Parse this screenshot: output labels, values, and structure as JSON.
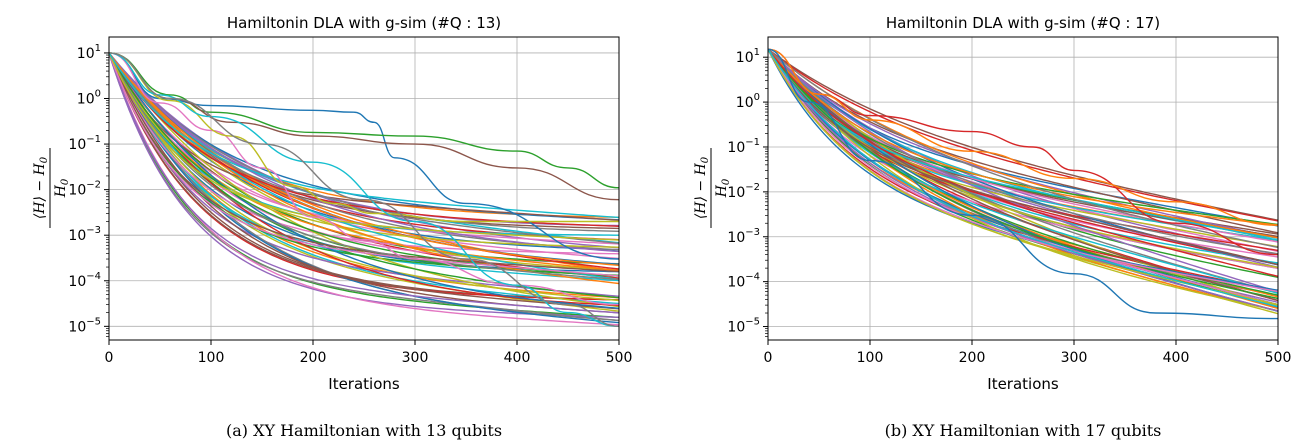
{
  "chart_data": [
    {
      "type": "line",
      "title": "Hamiltonin DLA with g-sim (#Q : 13)",
      "xlabel": "Iterations",
      "ylabel_tex": "(⟨H⟩ − H₀) / H₀",
      "ylabel_numerator": "⟨H⟩ − H",
      "ylabel_num_sub": "0",
      "ylabel_denominator": "H",
      "ylabel_den_sub": "0",
      "caption": "(a) XY Hamiltonian with 13 qubits",
      "xlim": [
        0,
        500
      ],
      "ylim_log10": [
        -5.3,
        1.35
      ],
      "y_scale": "log",
      "x_ticks": [
        0,
        100,
        200,
        300,
        400,
        500
      ],
      "y_ticks_exp": [
        1,
        0,
        -1,
        -2,
        -3,
        -4,
        -5
      ],
      "grid": true,
      "series_count": 60,
      "start_value": 10,
      "end_range_log10": [
        -5.0,
        -2.6
      ],
      "notable_series": [
        {
          "color": "#1f77b4",
          "points": [
            [
              0,
              10
            ],
            [
              50,
              1.0
            ],
            [
              100,
              0.7
            ],
            [
              200,
              0.55
            ],
            [
              240,
              0.5
            ],
            [
              260,
              0.3
            ],
            [
              280,
              0.05
            ],
            [
              350,
              0.005
            ],
            [
              500,
              0.0003
            ]
          ]
        },
        {
          "color": "#2ca02c",
          "points": [
            [
              0,
              10
            ],
            [
              60,
              1.2
            ],
            [
              100,
              0.5
            ],
            [
              200,
              0.18
            ],
            [
              300,
              0.15
            ],
            [
              400,
              0.07
            ],
            [
              450,
              0.03
            ],
            [
              500,
              0.011
            ]
          ]
        },
        {
          "color": "#8c564b",
          "points": [
            [
              0,
              10
            ],
            [
              60,
              1.0
            ],
            [
              120,
              0.3
            ],
            [
              200,
              0.15
            ],
            [
              300,
              0.1
            ],
            [
              400,
              0.03
            ],
            [
              500,
              0.006
            ]
          ]
        },
        {
          "color": "#e377c2",
          "points": [
            [
              0,
              10
            ],
            [
              50,
              0.8
            ],
            [
              100,
              0.2
            ],
            [
              150,
              0.03
            ],
            [
              200,
              0.0025
            ],
            [
              250,
              0.0008
            ],
            [
              300,
              0.0003
            ],
            [
              400,
              8e-05
            ],
            [
              500,
              3e-05
            ]
          ]
        },
        {
          "color": "#bcbd22",
          "points": [
            [
              0,
              10
            ],
            [
              60,
              0.9
            ],
            [
              120,
              0.15
            ],
            [
              180,
              0.012
            ],
            [
              220,
              0.005
            ],
            [
              260,
              0.003
            ],
            [
              350,
              0.002
            ],
            [
              500,
              0.002
            ]
          ]
        },
        {
          "color": "#17becf",
          "points": [
            [
              0,
              10
            ],
            [
              50,
              1.2
            ],
            [
              100,
              0.4
            ],
            [
              200,
              0.04
            ],
            [
              300,
              0.002
            ],
            [
              400,
              8e-05
            ],
            [
              450,
              2e-05
            ],
            [
              500,
              1e-05
            ]
          ]
        },
        {
          "color": "#7f7f7f",
          "points": [
            [
              0,
              10
            ],
            [
              60,
              1.0
            ],
            [
              150,
              0.1
            ],
            [
              250,
              0.006
            ],
            [
              350,
              0.0003
            ],
            [
              450,
              3e-05
            ],
            [
              500,
              1e-05
            ]
          ]
        }
      ]
    },
    {
      "type": "line",
      "title": "Hamiltonin DLA with g-sim (#Q : 17)",
      "xlabel": "Iterations",
      "ylabel_tex": "(⟨H⟩ − H₀) / H₀",
      "ylabel_numerator": "⟨H⟩ − H",
      "ylabel_num_sub": "0",
      "ylabel_denominator": "H",
      "ylabel_den_sub": "0",
      "caption": "(b) XY Hamiltonian with 17 qubits",
      "xlim": [
        0,
        500
      ],
      "ylim_log10": [
        -5.3,
        1.45
      ],
      "y_scale": "log",
      "x_ticks": [
        0,
        100,
        200,
        300,
        400,
        500
      ],
      "y_ticks_exp": [
        1,
        0,
        -1,
        -2,
        -3,
        -4,
        -5
      ],
      "grid": true,
      "series_count": 60,
      "start_value": 15,
      "end_range_log10": [
        -4.9,
        -2.7
      ],
      "notable_series": [
        {
          "color": "#d62728",
          "points": [
            [
              0,
              15
            ],
            [
              50,
              1.5
            ],
            [
              100,
              0.5
            ],
            [
              200,
              0.22
            ],
            [
              260,
              0.1
            ],
            [
              300,
              0.03
            ],
            [
              400,
              0.002
            ],
            [
              500,
              0.0004
            ]
          ]
        },
        {
          "color": "#ff7f0e",
          "points": [
            [
              0,
              15
            ],
            [
              50,
              1.5
            ],
            [
              100,
              0.4
            ],
            [
              200,
              0.08
            ],
            [
              300,
              0.02
            ],
            [
              400,
              0.006
            ],
            [
              500,
              0.0018
            ]
          ]
        },
        {
          "color": "#1f77b4",
          "points": [
            [
              0,
              15
            ],
            [
              40,
              1.0
            ],
            [
              100,
              0.05
            ],
            [
              200,
              0.003
            ],
            [
              300,
              0.00015
            ],
            [
              380,
              2e-05
            ],
            [
              500,
              1.5e-05
            ]
          ]
        }
      ]
    }
  ]
}
